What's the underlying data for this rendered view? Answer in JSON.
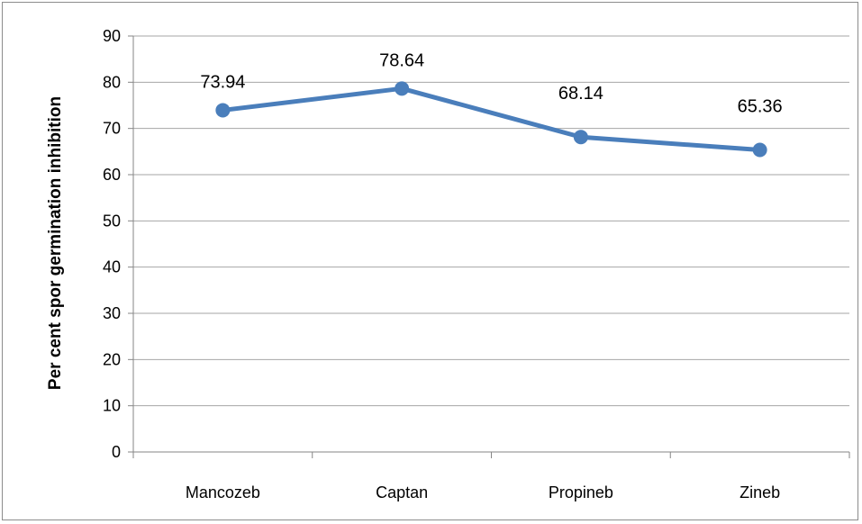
{
  "chart_data": {
    "type": "line",
    "categories": [
      "Mancozeb",
      "Captan",
      "Propineb",
      "Zineb"
    ],
    "series": [
      {
        "values": [
          73.94,
          78.64,
          68.14,
          65.36
        ]
      }
    ],
    "data_labels": [
      "73.94",
      "78.64",
      "68.14",
      "65.36"
    ],
    "title": "",
    "xlabel": "",
    "ylabel": "Per cent spor germination inhibition",
    "ylim": [
      0,
      90
    ],
    "yticks": [
      "0",
      "10",
      "20",
      "30",
      "40",
      "50",
      "60",
      "70",
      "80",
      "90"
    ],
    "grid": true,
    "line_color": "#4a7ebb",
    "grid_color": "#a6a6a6"
  }
}
